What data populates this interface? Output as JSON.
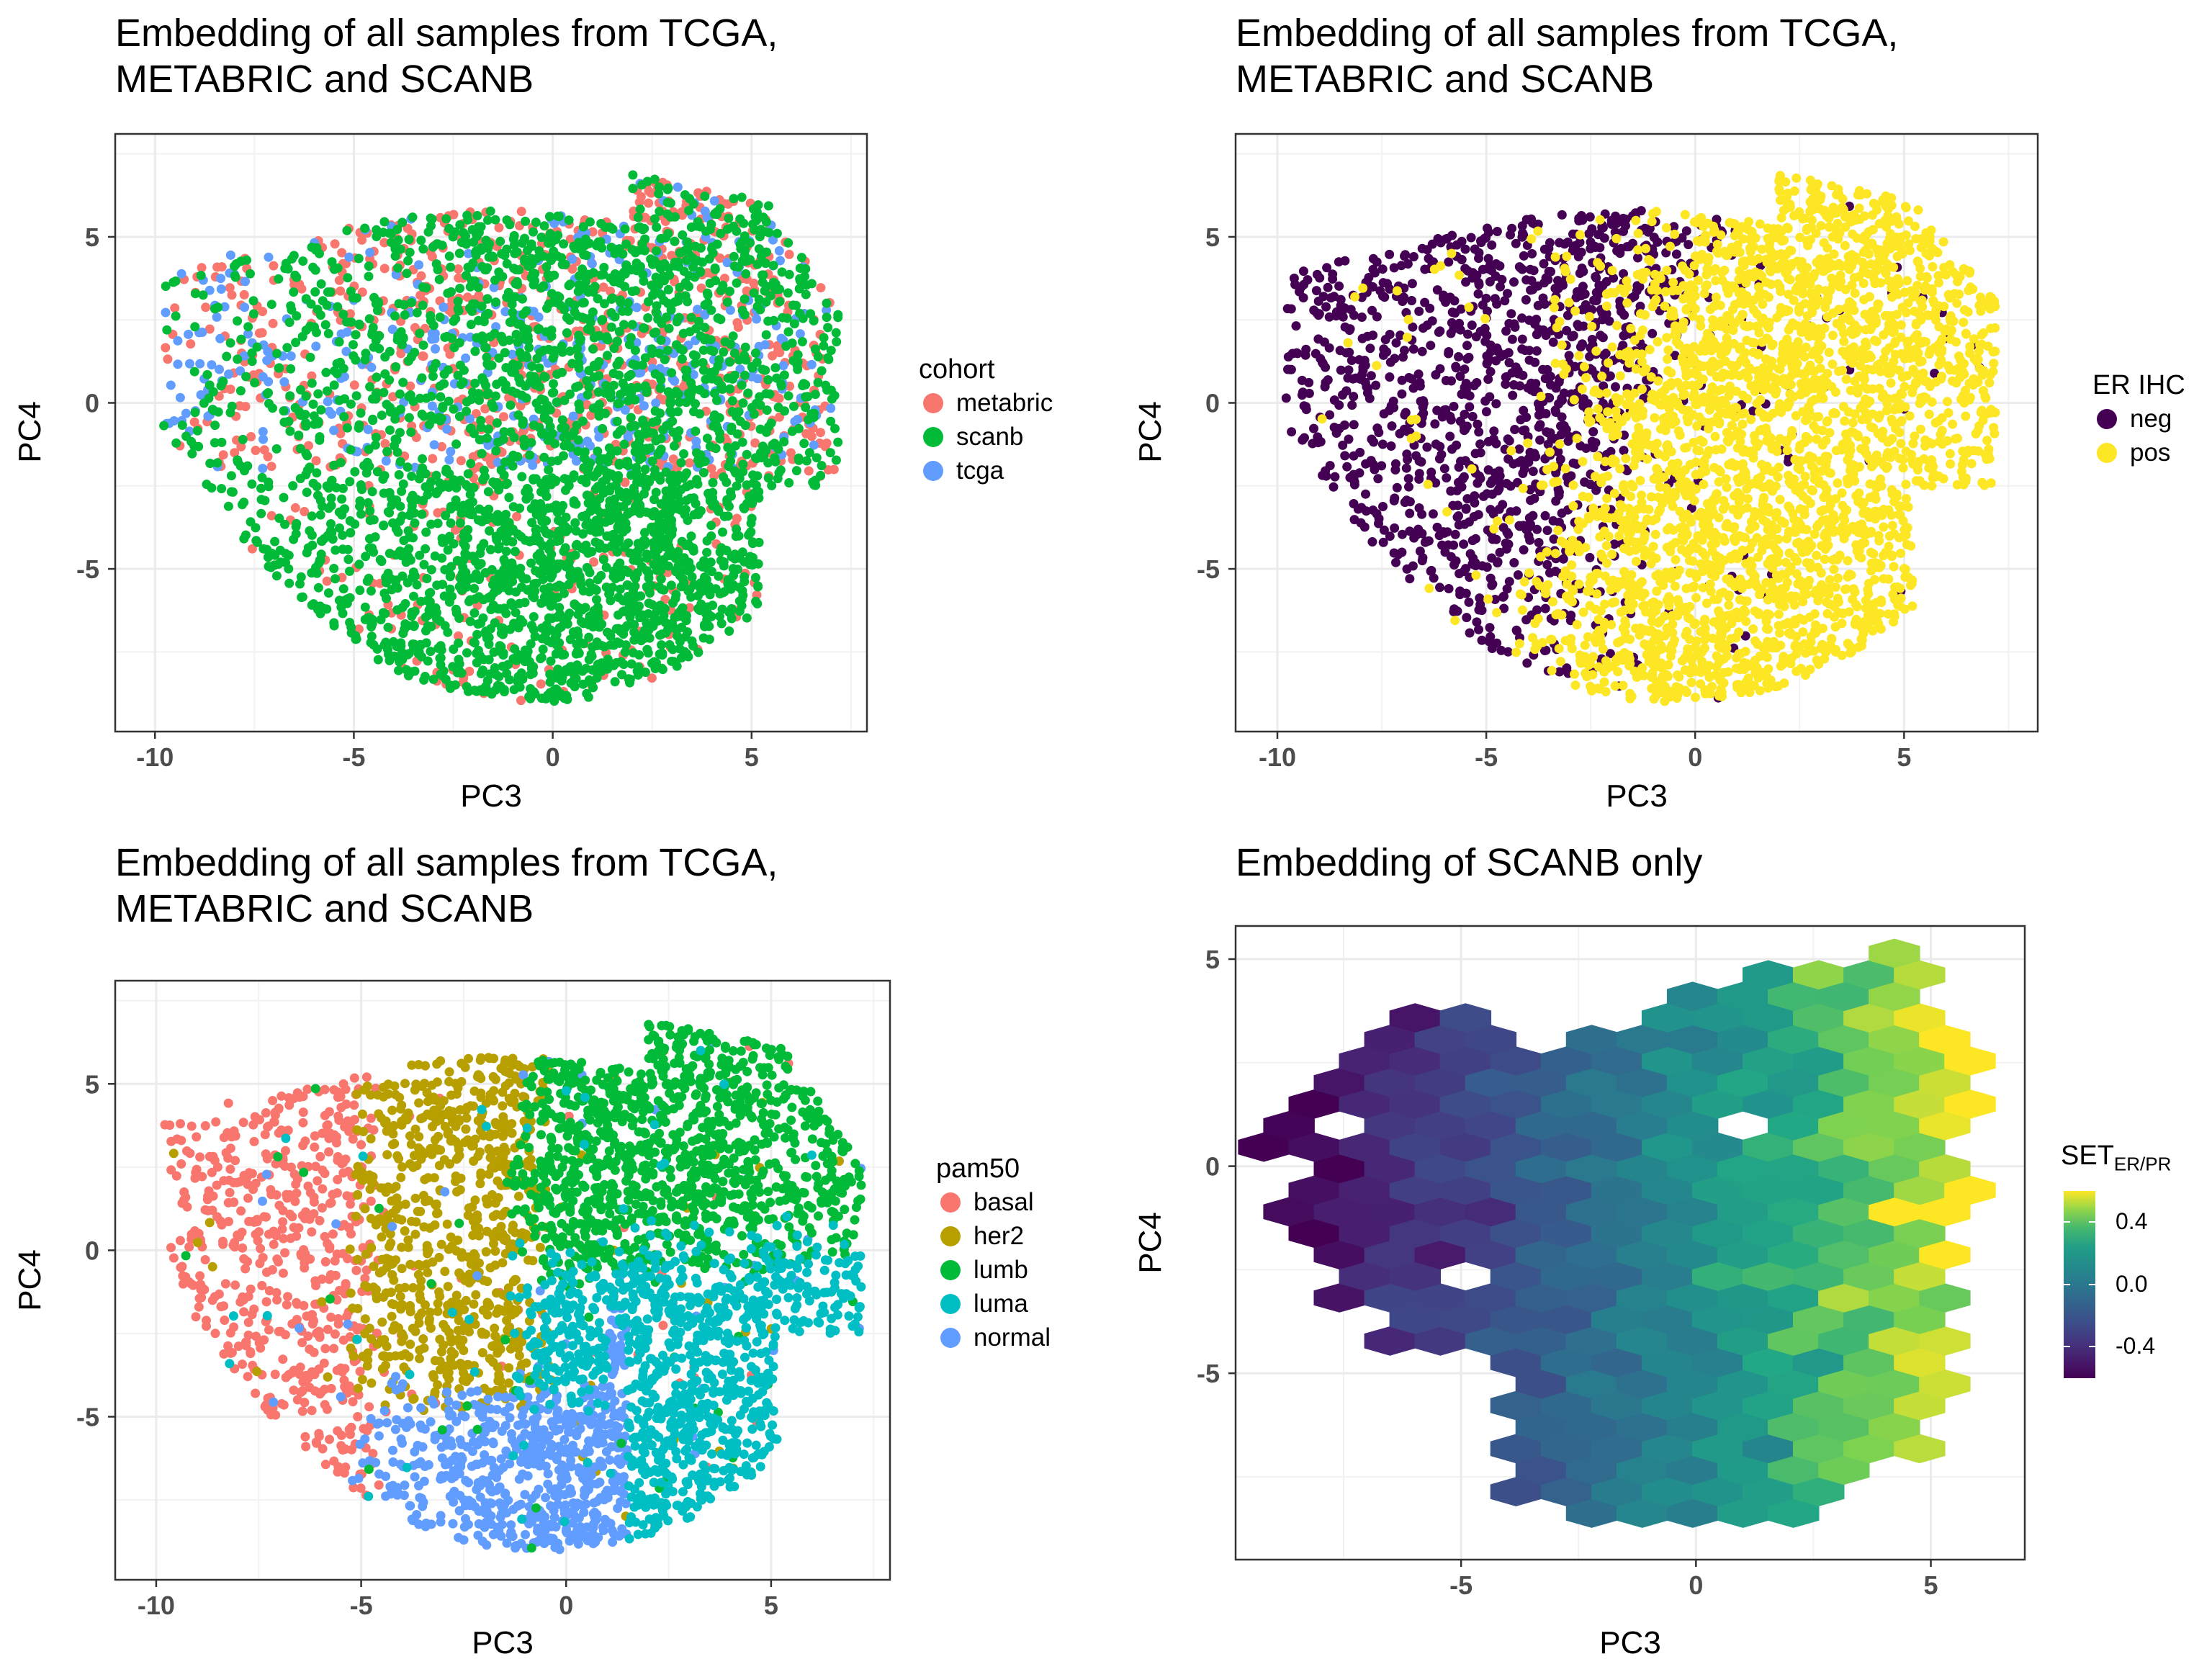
{
  "figure": {
    "panels": [
      {
        "id": "cohort",
        "title": [
          "Embedding of all samples from TCGA,",
          "METABRIC and SCANB"
        ],
        "xlabel": "PC3",
        "ylabel": "PC4",
        "legend": {
          "title": "cohort",
          "items": [
            {
              "label": "metabric",
              "color": "#F8766D"
            },
            {
              "label": "scanb",
              "color": "#00BA38"
            },
            {
              "label": "tcga",
              "color": "#619CFF"
            }
          ]
        }
      },
      {
        "id": "er",
        "title": [
          "Embedding of all samples from TCGA,",
          "METABRIC and SCANB"
        ],
        "xlabel": "PC3",
        "ylabel": "PC4",
        "legend": {
          "title": "ER IHC",
          "items": [
            {
              "label": "neg",
              "color": "#440154"
            },
            {
              "label": "pos",
              "color": "#FDE725"
            }
          ]
        }
      },
      {
        "id": "pam50",
        "title": [
          "Embedding of all samples from TCGA,",
          "METABRIC and SCANB"
        ],
        "xlabel": "PC3",
        "ylabel": "PC4",
        "legend": {
          "title": "pam50",
          "items": [
            {
              "label": "basal",
              "color": "#F8766D"
            },
            {
              "label": "her2",
              "color": "#B79F00"
            },
            {
              "label": "lumb",
              "color": "#00BA38"
            },
            {
              "label": "luma",
              "color": "#00BFC4"
            },
            {
              "label": "normal",
              "color": "#619CFF"
            }
          ]
        }
      },
      {
        "id": "scanb",
        "title": [
          "Embedding of SCANB only"
        ],
        "xlabel": "PC3",
        "ylabel": "PC4",
        "legend": {
          "title_main": "SET",
          "title_sub": "ER/PR",
          "ticks": [
            "0.4",
            "0.0",
            "-0.4"
          ]
        }
      }
    ]
  },
  "chart_data": [
    {
      "type": "scatter",
      "title": "Embedding of all samples from TCGA, METABRIC and SCANB",
      "xlabel": "PC3",
      "ylabel": "PC4",
      "xlim": [
        -11,
        7.9
      ],
      "ylim": [
        -9.9,
        8.1
      ],
      "xticks": [
        -10,
        -5,
        0,
        5
      ],
      "yticks": [
        -5,
        0,
        5
      ],
      "grid": true,
      "legend_position": "right",
      "color_by": "cohort",
      "series": [
        {
          "name": "metabric",
          "color": "#F8766D"
        },
        {
          "name": "scanb",
          "color": "#00BA38"
        },
        {
          "name": "tcga",
          "color": "#619CFF"
        }
      ],
      "point_cloud": {
        "x_range": [
          -9.8,
          7.2
        ],
        "y_range": [
          -8.9,
          7.2
        ]
      }
    },
    {
      "type": "scatter",
      "title": "Embedding of all samples from TCGA, METABRIC and SCANB",
      "xlabel": "PC3",
      "ylabel": "PC4",
      "xlim": [
        -11,
        8.2
      ],
      "ylim": [
        -9.9,
        8.1
      ],
      "xticks": [
        -10,
        -5,
        0,
        5
      ],
      "yticks": [
        -5,
        0,
        5
      ],
      "grid": true,
      "legend_position": "right",
      "color_by": "ER IHC",
      "series": [
        {
          "name": "neg",
          "color": "#440154"
        },
        {
          "name": "pos",
          "color": "#FDE725"
        }
      ],
      "point_cloud": {
        "x_range": [
          -9.8,
          7.2
        ],
        "y_range": [
          -8.9,
          7.2
        ]
      }
    },
    {
      "type": "scatter",
      "title": "Embedding of all samples from TCGA, METABRIC and SCANB",
      "xlabel": "PC3",
      "ylabel": "PC4",
      "xlim": [
        -11,
        7.9
      ],
      "ylim": [
        -9.9,
        8.1
      ],
      "xticks": [
        -10,
        -5,
        0,
        5
      ],
      "yticks": [
        -5,
        0,
        5
      ],
      "grid": true,
      "legend_position": "right",
      "color_by": "pam50",
      "series": [
        {
          "name": "basal",
          "color": "#F8766D"
        },
        {
          "name": "her2",
          "color": "#B79F00"
        },
        {
          "name": "lumb",
          "color": "#00BA38"
        },
        {
          "name": "luma",
          "color": "#00BFC4"
        },
        {
          "name": "normal",
          "color": "#619CFF"
        }
      ],
      "point_cloud": {
        "x_range": [
          -9.8,
          7.2
        ],
        "y_range": [
          -8.9,
          7.2
        ]
      }
    },
    {
      "type": "heatmap",
      "subtype": "hexbin",
      "title": "Embedding of SCANB only",
      "xlabel": "PC3",
      "ylabel": "PC4",
      "xlim": [
        -9.8,
        7
      ],
      "ylim": [
        -9.5,
        5.8
      ],
      "xticks": [
        -5,
        0,
        5
      ],
      "yticks": [
        -5,
        0,
        5
      ],
      "grid": true,
      "legend_position": "right",
      "fill": "SET ER/PR",
      "fill_range": [
        -0.6,
        0.6
      ],
      "colorbar_ticks": [
        0.4,
        0.0,
        -0.4
      ],
      "colormap": "viridis",
      "trend": "fill increases from about -0.55 at PC3 = -8 to about 0.55 at PC3 = 5"
    }
  ]
}
